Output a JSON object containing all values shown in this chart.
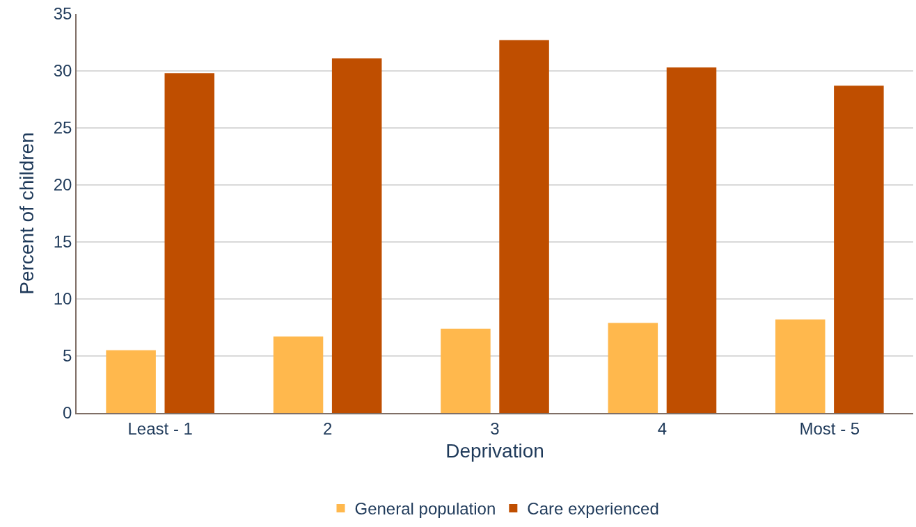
{
  "chart_data": {
    "type": "bar",
    "xlabel": "Deprivation",
    "ylabel": "Percent of children",
    "categories": [
      "Least - 1",
      "2",
      "3",
      "4",
      "Most - 5"
    ],
    "series": [
      {
        "name": "General population",
        "color": "#ffb84d",
        "values": [
          5.5,
          6.7,
          7.4,
          7.9,
          8.2
        ]
      },
      {
        "name": "Care experienced",
        "color": "#bf4e00",
        "values": [
          29.8,
          31.1,
          32.7,
          30.3,
          28.7
        ]
      }
    ],
    "ylim": [
      0,
      35
    ],
    "yticks": [
      0,
      5,
      10,
      15,
      20,
      25,
      30,
      35
    ],
    "grid": "y",
    "legend": "bottom"
  }
}
